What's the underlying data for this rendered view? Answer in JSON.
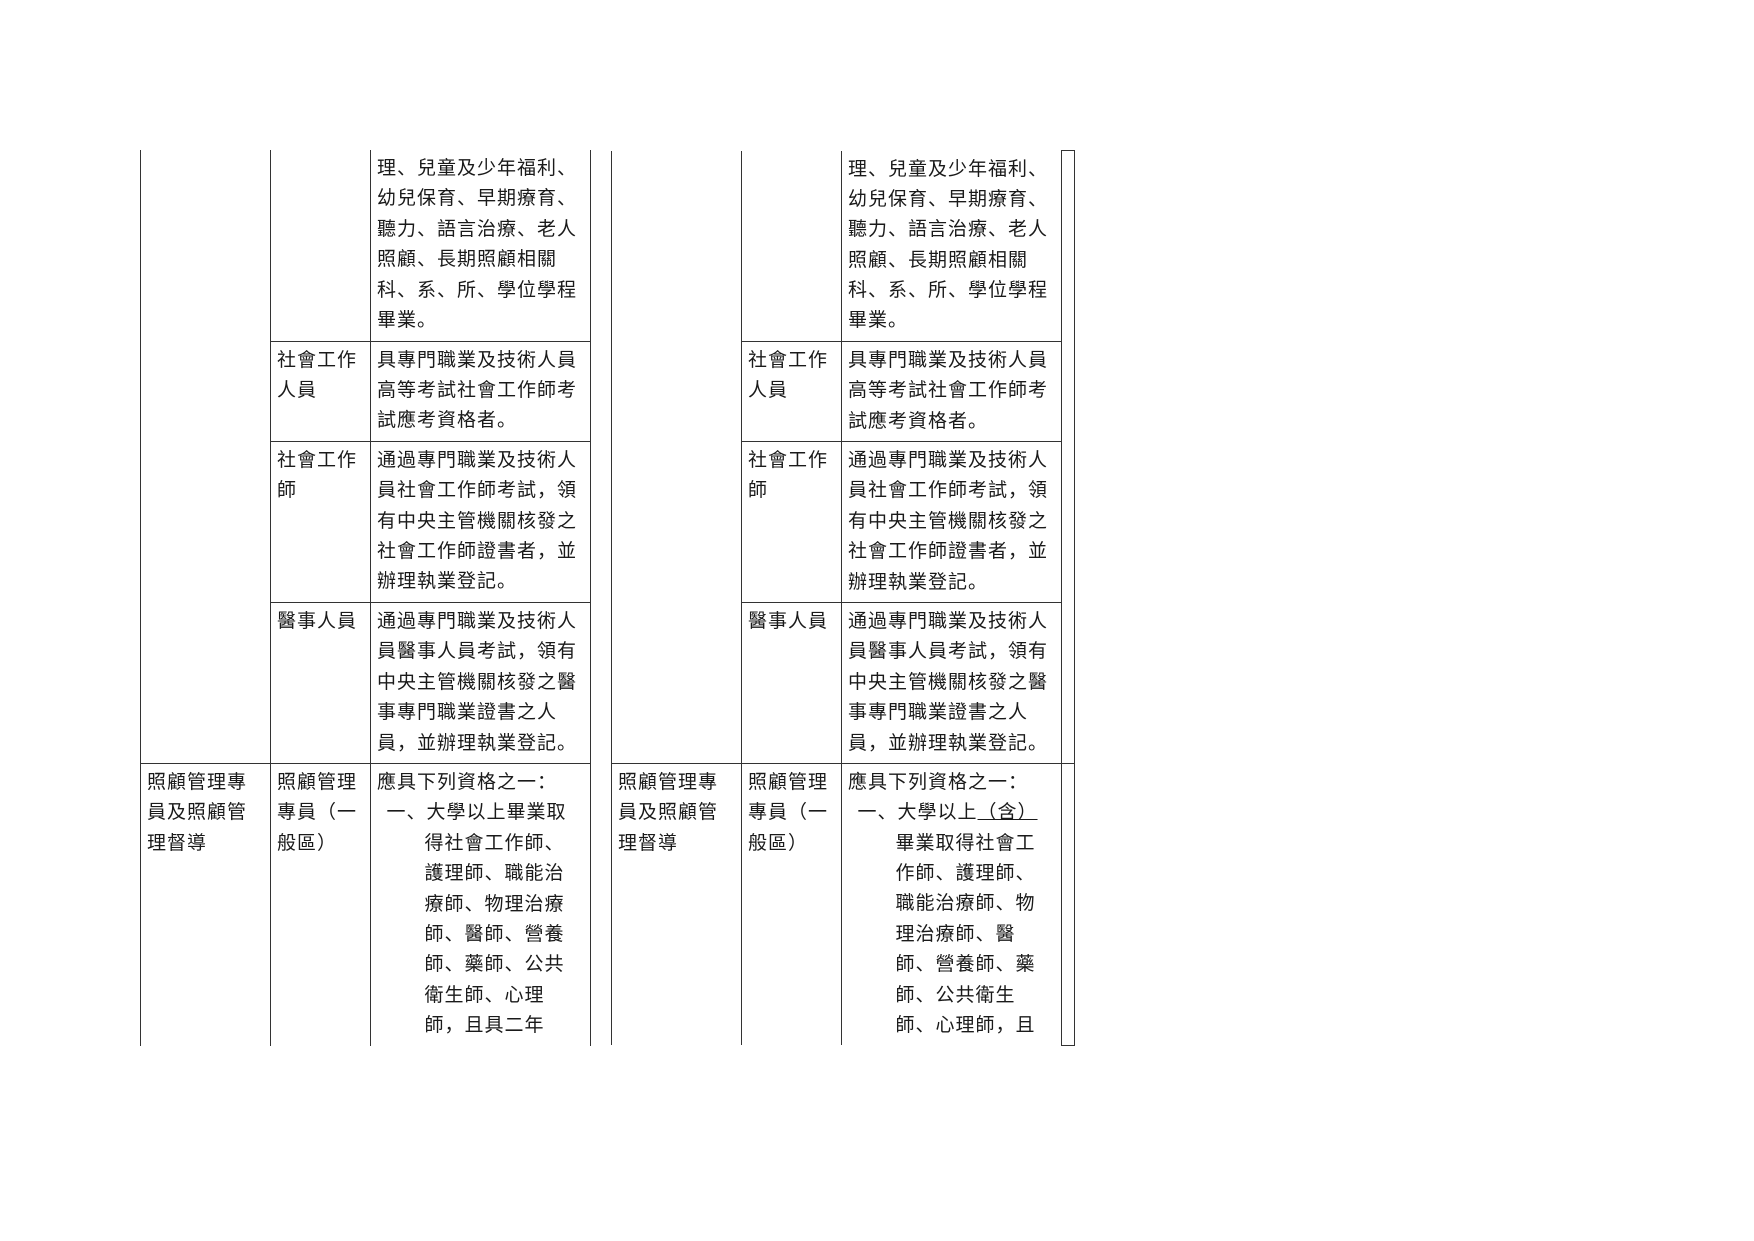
{
  "text_color": "#1a1a1a",
  "border_color": "#333333",
  "background_color": "#ffffff",
  "font_size": 19,
  "left": {
    "rows": [
      {
        "category": "",
        "role": "",
        "desc": "理、兒童及少年福利、幼兒保育、早期療育、聽力、語言治療、老人照顧、長期照顧相關科、系、所、學位學程畢業。",
        "cat_open_top": true
      },
      {
        "role": "社會工作人員",
        "desc": "具專門職業及技術人員高等考試社會工作師考試應考資格者。"
      },
      {
        "role": "社會工作師",
        "desc": "通過專門職業及技術人員社會工作師考試，領有中央主管機關核發之社會工作師證書者，並辦理執業登記。"
      },
      {
        "role": "醫事人員",
        "desc": "通過專門職業及技術人員醫事人員考試，領有中央主管機關核發之醫事專門職業證書之人員，並辦理執業登記。"
      },
      {
        "category": "照顧管理專員及照顧管理督導",
        "role": "照顧管理專員（一般區）",
        "desc_lines": [
          "應具下列資格之一：",
          "一、大學以上畢業取得社會工作師、護理師、職能治療師、物理治療師、醫師、營養師、藥師、公共衛生師、心理師，且具二年"
        ],
        "open_bottom": true
      }
    ]
  },
  "right": {
    "rows": [
      {
        "category": "",
        "role": "",
        "desc": "理、兒童及少年福利、幼兒保育、早期療育、聽力、語言治療、老人照顧、長期照顧相關科、系、所、學位學程畢業。",
        "cat_open_top": true
      },
      {
        "role": "社會工作人員",
        "desc": "具專門職業及技術人員高等考試社會工作師考試應考資格者。"
      },
      {
        "role": "社會工作師",
        "desc": "通過專門職業及技術人員社會工作師考試，領有中央主管機關核發之社會工作師證書者，並辦理執業登記。"
      },
      {
        "role": "醫事人員",
        "desc": "通過專門職業及技術人員醫事人員考試，領有中央主管機關核發之醫事專門職業證書之人員，並辦理執業登記。"
      },
      {
        "category": "照顧管理專員及照顧管理督導",
        "role": "照顧管理專員（一般區）",
        "desc_header": "應具下列資格之一：",
        "desc_item_prefix": "一、大學以上",
        "desc_item_underlined": "（含）",
        "desc_item_suffix": "畢業取得社會工作師、護理師、職能治療師、物理治療師、醫師、營養師、藥師、公共衛生師、心理師，且",
        "open_bottom": true
      }
    ]
  }
}
